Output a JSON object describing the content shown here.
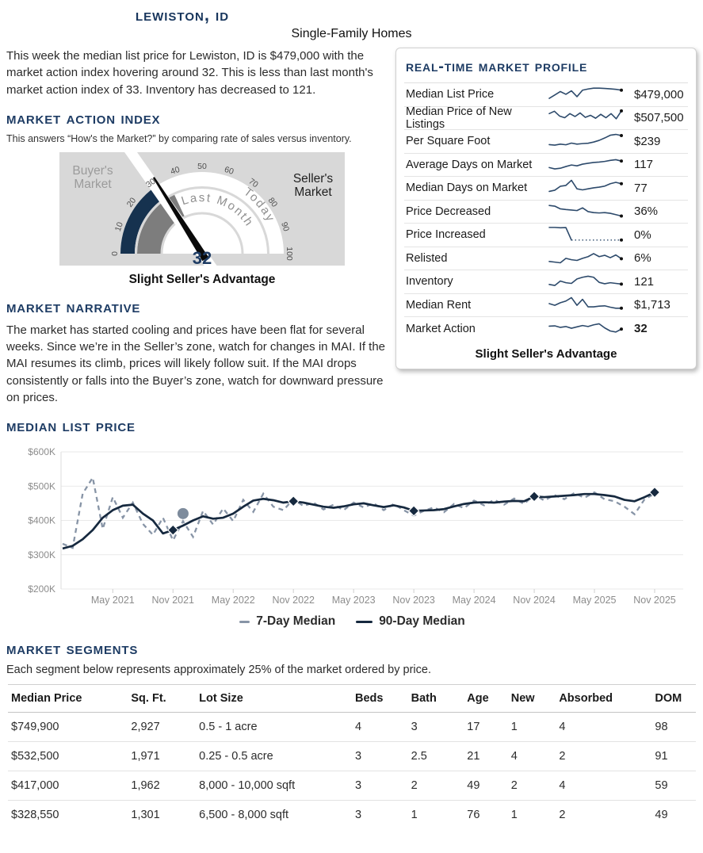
{
  "page": {
    "title": "Lewiston, ID",
    "subtitle": "Single-Family Homes",
    "intro": "This week the median list price for Lewiston, ID is $479,000 with the market action index hovering around 32. This is less than last month's market action index of 33. Inventory has decreased to 121."
  },
  "market_action_index": {
    "heading": "Market Action Index",
    "description": "This answers “How's the Market?” by comparing rate of sales versus inventory.",
    "gauge": {
      "value": 32,
      "last_month_value": 33,
      "value_label": "32",
      "ticks": [
        0,
        10,
        20,
        30,
        40,
        50,
        60,
        70,
        80,
        90,
        100
      ],
      "buyers_label_line1": "Buyer's",
      "buyers_label_line2": "Market",
      "sellers_label_line1": "Seller's",
      "sellers_label_line2": "Market",
      "inner_arc_label": "Last Month",
      "outer_arc_label": "Today",
      "caption": "Slight Seller's Advantage",
      "colors": {
        "panel_bg": "#d8d8d8",
        "today_fill": "#16324f",
        "last_month_fill": "#7d7d7d",
        "needle": "#0a0a0a",
        "tick_text": "#4f4f4f",
        "arc_label": "#8f8f8f",
        "buyers_text": "#9b9b9b",
        "sellers_text": "#1f1f1f",
        "value_text": "#1e3c64"
      }
    }
  },
  "market_profile": {
    "heading": "Real-Time Market Profile",
    "spark_color": "#2d4a6b",
    "rows": [
      {
        "label": "Median List Price",
        "value": "$479,000",
        "spark": [
          22,
          42,
          62,
          46,
          66,
          32,
          70,
          77,
          82,
          82,
          80,
          78,
          75,
          70
        ]
      },
      {
        "label": "Median Price of New Listings",
        "value": "$507,500",
        "spark": [
          72,
          86,
          58,
          48,
          72,
          55,
          76,
          50,
          62,
          45,
          68,
          48,
          72,
          42,
          88
        ]
      },
      {
        "label": "Per Square Foot",
        "value": "$239",
        "spark": [
          25,
          22,
          28,
          24,
          34,
          28,
          31,
          33,
          40,
          50,
          64,
          80,
          85,
          78
        ]
      },
      {
        "label": "Average Days on Market",
        "value": "117",
        "spark": [
          30,
          22,
          26,
          36,
          45,
          40,
          50,
          55,
          60,
          62,
          66,
          72,
          76,
          68
        ]
      },
      {
        "label": "Median Days on Market",
        "value": "77",
        "spark": [
          25,
          32,
          55,
          60,
          90,
          40,
          34,
          40,
          46,
          50,
          56,
          70,
          78,
          70
        ]
      },
      {
        "label": "Price Decreased",
        "value": "36%",
        "spark": [
          82,
          78,
          62,
          58,
          55,
          52,
          68,
          46,
          40,
          38,
          40,
          36,
          28,
          20
        ]
      },
      {
        "label": "Price Increased",
        "value": "0%",
        "spark": [
          88,
          88,
          86,
          87,
          14,
          14,
          14,
          14,
          14,
          14,
          14,
          14,
          14,
          14
        ],
        "dotted_from": 4
      },
      {
        "label": "Relisted",
        "value": "6%",
        "spark": [
          28,
          24,
          20,
          46,
          38,
          34,
          46,
          56,
          74,
          56,
          64,
          50,
          66,
          44
        ]
      },
      {
        "label": "Inventory",
        "value": "121",
        "spark": [
          28,
          22,
          48,
          38,
          34,
          60,
          70,
          76,
          70,
          40,
          32,
          38,
          34,
          30
        ]
      },
      {
        "label": "Median Rent",
        "value": "$1,713",
        "spark": [
          55,
          45,
          60,
          70,
          90,
          45,
          80,
          36,
          36,
          40,
          42,
          34,
          28,
          28
        ]
      },
      {
        "label": "Market Action",
        "value": "32",
        "bold": true,
        "spark": [
          62,
          64,
          55,
          60,
          50,
          58,
          66,
          60,
          70,
          76,
          52,
          34,
          28,
          45
        ]
      }
    ],
    "footer": "Slight Seller's Advantage"
  },
  "market_narrative": {
    "heading": "Market Narrative",
    "text": "The market has started cooling and prices have been flat for several weeks. Since we’re in the Seller’s zone, watch for changes in MAI. If the MAI resumes its climb, prices will likely follow suit. If the MAI drops consistently or falls into the Buyer’s zone, watch for downward pressure on prices."
  },
  "chart_section": {
    "heading": "Median List Price"
  },
  "chart_data": {
    "type": "line",
    "title": "Median List Price",
    "xlabel": "",
    "ylabel": "",
    "ylim": [
      200000,
      600000
    ],
    "grid": true,
    "legend_position": "bottom",
    "y_ticks": [
      "$200K",
      "$300K",
      "$400K",
      "$500K",
      "$600K"
    ],
    "y_tick_values_k": [
      200,
      300,
      400,
      500,
      600
    ],
    "x_tick_labels": [
      "May 2021",
      "Nov 2021",
      "May 2022",
      "Nov 2022",
      "May 2023",
      "Nov 2023",
      "May 2024",
      "Nov 2024",
      "May 2025",
      "Nov 2025"
    ],
    "x_tick_indices": [
      5,
      11,
      17,
      23,
      29,
      35,
      41,
      47,
      53,
      59
    ],
    "x_start_month": "Dec 2020",
    "series": [
      {
        "name": "7-Day Median",
        "style": "dashed",
        "color": "#8794a6",
        "values_k": [
          332,
          320,
          478,
          525,
          375,
          468,
          408,
          452,
          390,
          358,
          408,
          342,
          398,
          352,
          428,
          388,
          435,
          398,
          460,
          425,
          478,
          440,
          430,
          462,
          442,
          452,
          432,
          446,
          430,
          452,
          438,
          450,
          430,
          448,
          430,
          414,
          428,
          438,
          424,
          448,
          436,
          458,
          444,
          460,
          446,
          464,
          448,
          476,
          458,
          474,
          462,
          480,
          466,
          482,
          462,
          456,
          440,
          418,
          462,
          478
        ]
      },
      {
        "name": "90-Day Median",
        "style": "solid",
        "color": "#16293f",
        "values_k": [
          318,
          326,
          345,
          372,
          408,
          430,
          443,
          446,
          420,
          400,
          362,
          372,
          385,
          400,
          412,
          405,
          408,
          420,
          440,
          458,
          463,
          459,
          452,
          456,
          452,
          446,
          440,
          437,
          441,
          447,
          450,
          444,
          439,
          444,
          438,
          428,
          429,
          430,
          433,
          441,
          448,
          452,
          453,
          452,
          455,
          457,
          456,
          470,
          468,
          470,
          472,
          474,
          477,
          477,
          474,
          470,
          460,
          456,
          468,
          482
        ],
        "marker_indices": [
          11,
          23,
          35,
          47,
          59
        ]
      }
    ],
    "annotation_point": {
      "index": 12,
      "value_k": 420,
      "color": "#7d8b9c"
    },
    "legend": [
      "7-Day Median",
      "90-Day Median"
    ]
  },
  "market_segments": {
    "heading": "Market Segments",
    "description": "Each segment below represents approximately 25% of the market ordered by price.",
    "columns": [
      "Median Price",
      "Sq. Ft.",
      "Lot Size",
      "Beds",
      "Bath",
      "Age",
      "New",
      "Absorbed",
      "DOM"
    ],
    "rows": [
      [
        "$749,900",
        "2,927",
        "0.5 - 1 acre",
        "4",
        "3",
        "17",
        "1",
        "4",
        "98"
      ],
      [
        "$532,500",
        "1,971",
        "0.25 - 0.5 acre",
        "3",
        "2.5",
        "21",
        "4",
        "2",
        "91"
      ],
      [
        "$417,000",
        "1,962",
        "8,000 - 10,000 sqft",
        "3",
        "2",
        "49",
        "2",
        "4",
        "59"
      ],
      [
        "$328,550",
        "1,301",
        "6,500 - 8,000 sqft",
        "3",
        "1",
        "76",
        "1",
        "2",
        "49"
      ]
    ]
  }
}
